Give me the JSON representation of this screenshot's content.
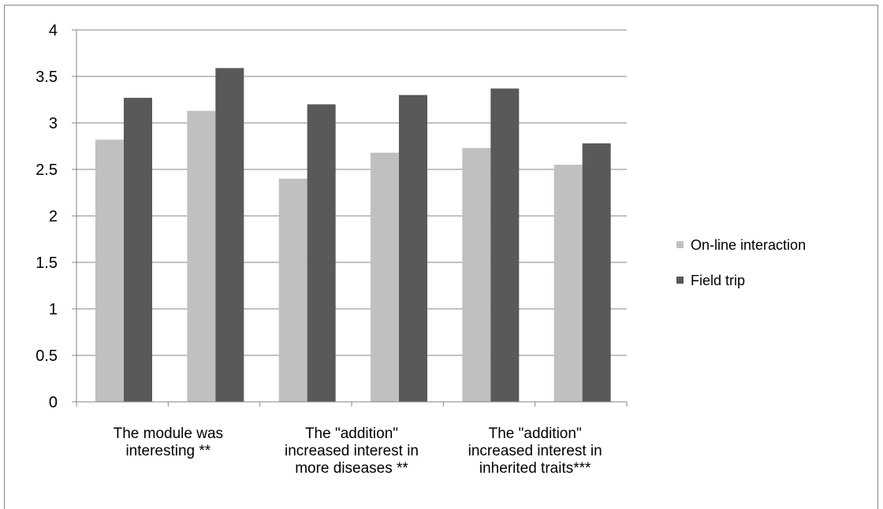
{
  "chart_data": {
    "type": "bar",
    "categories": [
      "The module was interesting **",
      "",
      "The \"addition\" increased interest in more diseases **",
      "",
      "The \"addition\" increased interest in inherited traits***",
      ""
    ],
    "category_label_lines": [
      [
        "The module was",
        "interesting **"
      ],
      [
        "The \"addition\"",
        "increased interest in",
        "more diseases **"
      ],
      [
        "The \"addition\"",
        "increased interest in",
        "inherited traits***"
      ]
    ],
    "series": [
      {
        "name": "On-line interaction",
        "color": "#c0c0c0",
        "values": [
          2.82,
          3.13,
          2.4,
          2.68,
          2.73,
          2.55
        ]
      },
      {
        "name": "Field trip",
        "color": "#595959",
        "values": [
          3.27,
          3.59,
          3.2,
          3.3,
          3.37,
          2.78
        ]
      }
    ],
    "ylim": [
      0,
      4
    ],
    "yticks": [
      "0",
      "0.5",
      "1",
      "1.5",
      "2",
      "2.5",
      "3",
      "3.5",
      "4"
    ],
    "grid": true,
    "legend_position": "right",
    "title": "",
    "xlabel": "",
    "ylabel": ""
  }
}
